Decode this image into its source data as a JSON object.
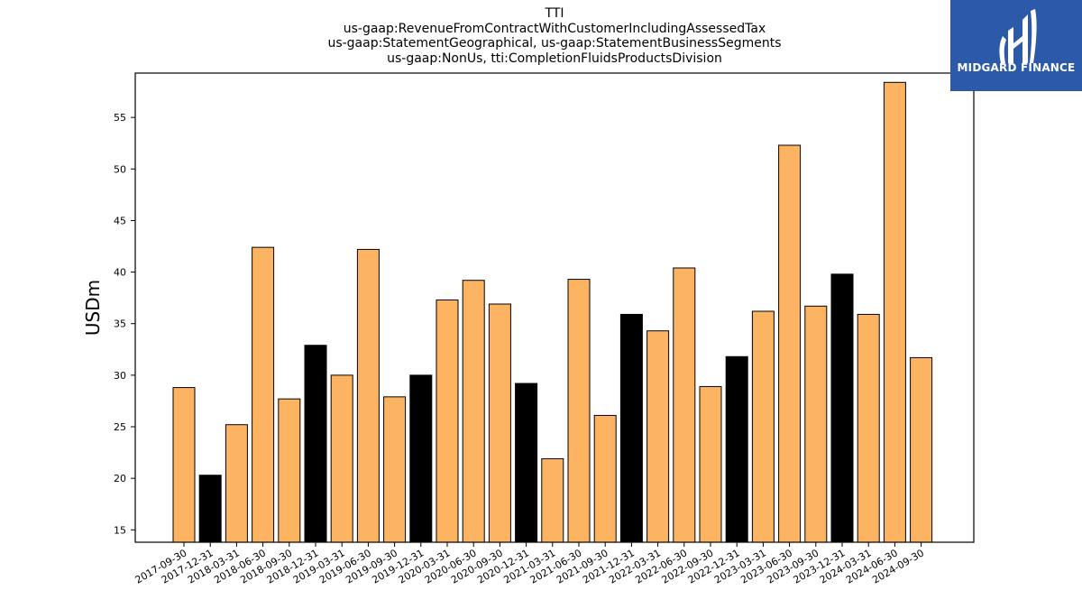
{
  "chart_data": {
    "type": "bar",
    "title": [
      "TTI",
      "us-gaap:RevenueFromContractWithCustomerIncludingAssessedTax",
      "us-gaap:StatementGeographical, us-gaap:StatementBusinessSegments",
      "us-gaap:NonUs, tti:CompletionFluidsProductsDivision"
    ],
    "ylabel": "USDm",
    "ylim": [
      13.8,
      59.3
    ],
    "yticks": [
      15,
      20,
      25,
      30,
      35,
      40,
      45,
      50,
      55
    ],
    "categories": [
      "2017-09-30",
      "2017-12-31",
      "2018-03-31",
      "2018-06-30",
      "2018-09-30",
      "2018-12-31",
      "2019-03-31",
      "2019-06-30",
      "2019-09-30",
      "2019-12-31",
      "2020-03-31",
      "2020-06-30",
      "2020-09-30",
      "2020-12-31",
      "2021-03-31",
      "2021-06-30",
      "2021-09-30",
      "2021-12-31",
      "2022-03-31",
      "2022-06-30",
      "2022-09-30",
      "2022-12-31",
      "2023-03-31",
      "2023-06-30",
      "2023-09-30",
      "2023-12-31",
      "2024-03-31",
      "2024-06-30",
      "2024-09-30"
    ],
    "values": [
      28.8,
      20.3,
      25.2,
      42.4,
      27.7,
      32.9,
      30.0,
      42.2,
      27.9,
      30.0,
      37.3,
      39.2,
      36.9,
      29.2,
      21.9,
      39.3,
      26.1,
      35.9,
      34.3,
      40.4,
      28.9,
      31.8,
      36.2,
      52.3,
      36.7,
      39.8,
      35.9,
      58.4,
      31.7
    ],
    "bar_colors": [
      "#fdb462",
      "#000000",
      "#fdb462",
      "#fdb462",
      "#fdb462",
      "#000000",
      "#fdb462",
      "#fdb462",
      "#fdb462",
      "#000000",
      "#fdb462",
      "#fdb462",
      "#fdb462",
      "#000000",
      "#fdb462",
      "#fdb462",
      "#fdb462",
      "#000000",
      "#fdb462",
      "#fdb462",
      "#fdb462",
      "#000000",
      "#fdb462",
      "#fdb462",
      "#fdb462",
      "#000000",
      "#fdb462",
      "#fdb462",
      "#fdb462"
    ],
    "grid": false,
    "legend": "none"
  },
  "logo": {
    "text": "MIDGARD FINANCE",
    "bg_color": "#2d5aa8"
  }
}
